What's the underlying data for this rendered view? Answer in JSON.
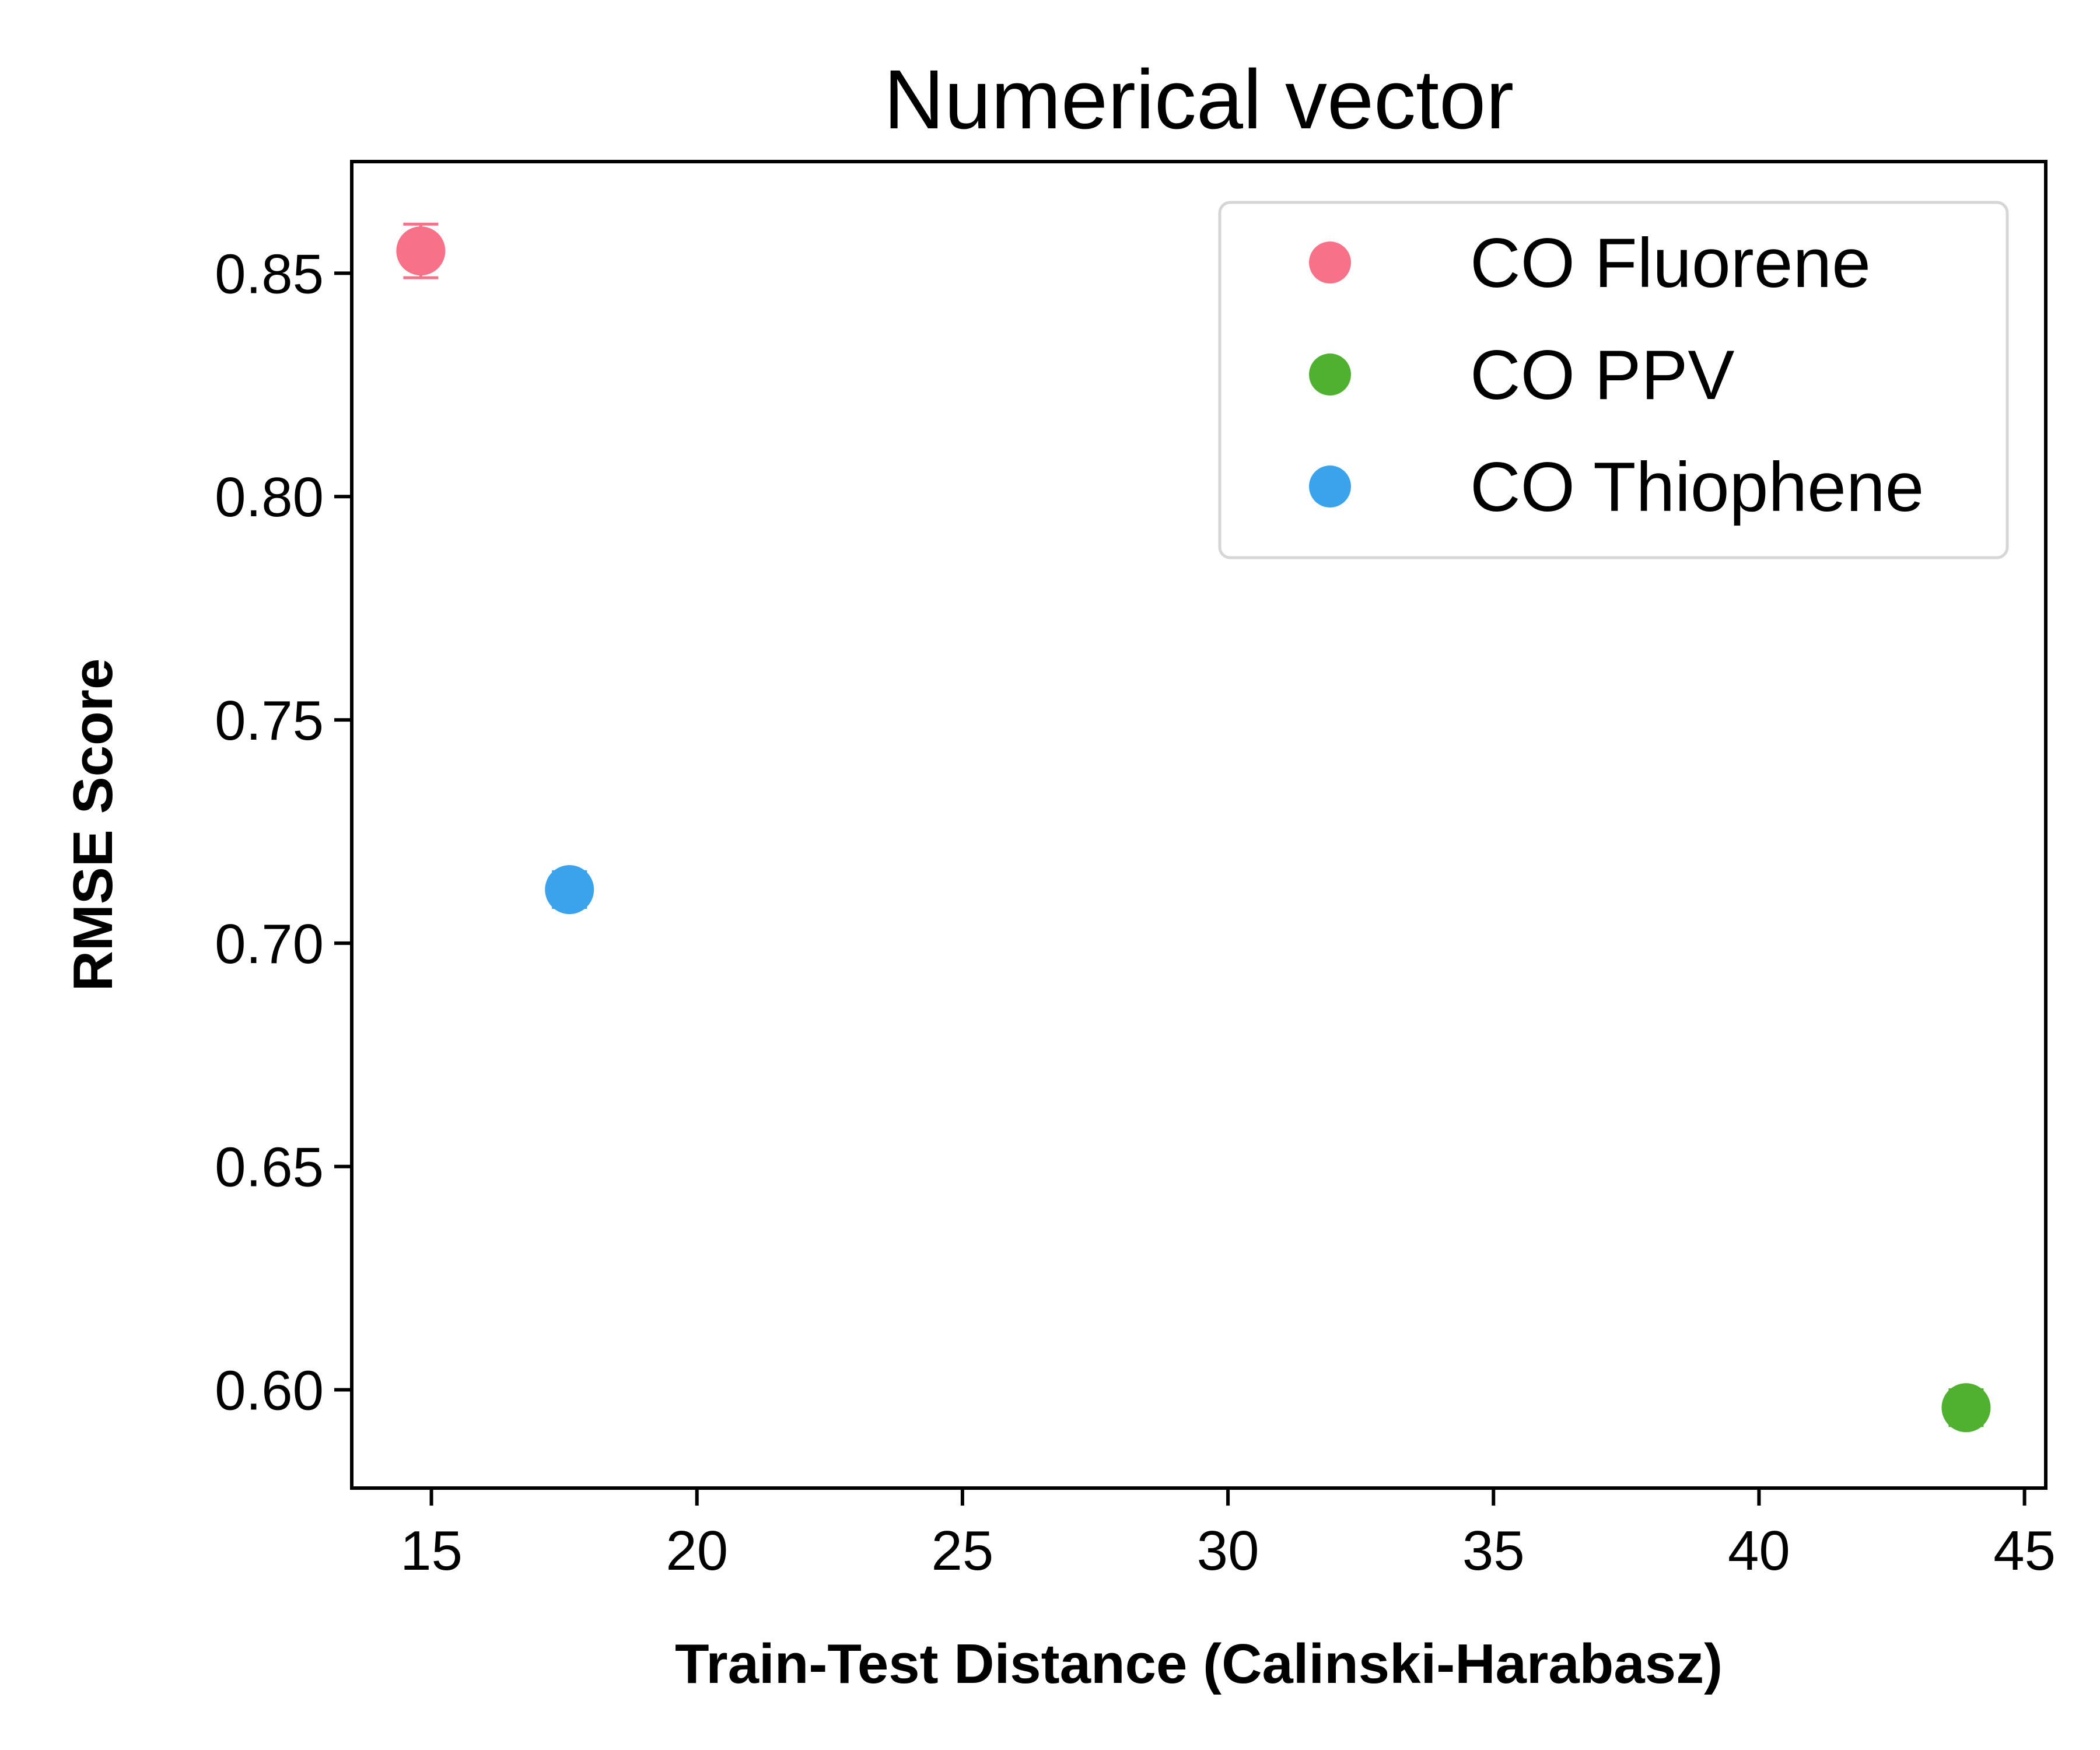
{
  "chart_data": {
    "type": "scatter",
    "title": "Numerical vector",
    "xlabel": "Train-Test Distance (Calinski-Harabasz)",
    "ylabel": "RMSE Score",
    "xlim": [
      13.5,
      45.4
    ],
    "ylim": [
      0.578,
      0.875
    ],
    "xticks": [
      15,
      20,
      25,
      30,
      35,
      40,
      45
    ],
    "xtick_labels": [
      "15",
      "20",
      "25",
      "30",
      "35",
      "40",
      "45"
    ],
    "yticks": [
      0.6,
      0.65,
      0.7,
      0.75,
      0.8,
      0.85
    ],
    "ytick_labels": [
      "0.60",
      "0.65",
      "0.70",
      "0.75",
      "0.80",
      "0.85"
    ],
    "grid": false,
    "legend_position": "top-right",
    "series": [
      {
        "name": "CO Fluorene",
        "color": "#f77189",
        "x": [
          14.8
        ],
        "y": [
          0.855
        ],
        "yerr": [
          0.006
        ]
      },
      {
        "name": "CO PPV",
        "color": "#50b131",
        "x": [
          43.9
        ],
        "y": [
          0.596
        ],
        "yerr": [
          0.004
        ]
      },
      {
        "name": "CO Thiophene",
        "color": "#3ba3ec",
        "x": [
          17.6
        ],
        "y": [
          0.712
        ],
        "yerr": [
          0.004
        ]
      }
    ]
  }
}
